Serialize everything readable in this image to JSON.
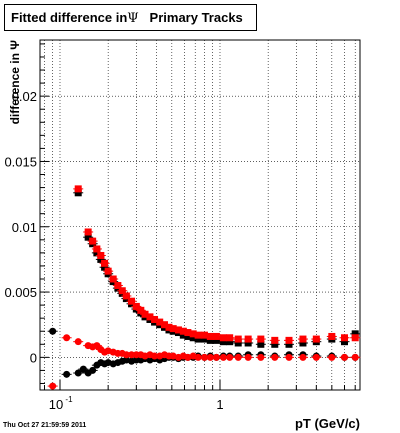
{
  "title_prefix": "Fitted difference in",
  "title_symbol": "Ψ",
  "title_suffix": "Primary Tracks",
  "footer_timestamp": "Thu Oct 27 21:59:59 2011",
  "chart_data": {
    "type": "scatter",
    "title": "Fitted difference in Ψ Primary Tracks",
    "xlabel": "pT (GeV/c)",
    "ylabel": "difference in Ψ",
    "xscale": "log",
    "xlim": [
      0.075,
      7.5
    ],
    "ylim": [
      -0.0025,
      0.0243
    ],
    "grid": true,
    "x_ticks": [
      {
        "value": 0.1,
        "label": "10",
        "exp": "-1"
      },
      {
        "value": 1,
        "label": "1"
      }
    ],
    "y_ticks": [
      {
        "value": 0,
        "label": "0"
      },
      {
        "value": 0.005,
        "label": "0.005"
      },
      {
        "value": 0.01,
        "label": "0.01"
      },
      {
        "value": 0.015,
        "label": "0.015"
      },
      {
        "value": 0.02,
        "label": "0.02"
      }
    ],
    "series": [
      {
        "color": "#000000",
        "marker": "square",
        "x": [
          0.13,
          0.15,
          0.16,
          0.17,
          0.18,
          0.19,
          0.2,
          0.215,
          0.23,
          0.245,
          0.26,
          0.28,
          0.3,
          0.32,
          0.34,
          0.365,
          0.39,
          0.42,
          0.45,
          0.48,
          0.51,
          0.55,
          0.59,
          0.63,
          0.68,
          0.73,
          0.8,
          0.87,
          0.95,
          1.05,
          1.15,
          1.3,
          1.5,
          1.8,
          2.2,
          2.7,
          3.3,
          4.0,
          5.0,
          6.0,
          7.0
        ],
        "y": [
          0.0126,
          0.0092,
          0.0087,
          0.008,
          0.0075,
          0.0069,
          0.0064,
          0.0058,
          0.0053,
          0.0049,
          0.0045,
          0.0041,
          0.0037,
          0.0034,
          0.0031,
          0.0029,
          0.0027,
          0.0025,
          0.0023,
          0.0021,
          0.002,
          0.0019,
          0.0017,
          0.0016,
          0.0015,
          0.0014,
          0.0014,
          0.0013,
          0.0013,
          0.0012,
          0.0012,
          0.0011,
          0.0011,
          0.001,
          0.001,
          0.001,
          0.0011,
          0.0012,
          0.0014,
          0.0012,
          0.0018
        ]
      },
      {
        "color": "#ff0000",
        "marker": "square",
        "x": [
          0.13,
          0.15,
          0.16,
          0.17,
          0.18,
          0.19,
          0.2,
          0.215,
          0.23,
          0.245,
          0.26,
          0.28,
          0.3,
          0.32,
          0.34,
          0.365,
          0.39,
          0.42,
          0.45,
          0.48,
          0.51,
          0.55,
          0.59,
          0.63,
          0.68,
          0.73,
          0.8,
          0.87,
          0.95,
          1.05,
          1.15,
          1.3,
          1.5,
          1.8,
          2.2,
          2.7,
          3.3,
          4.0,
          5.0,
          6.0,
          7.0
        ],
        "y": [
          0.0129,
          0.0096,
          0.0089,
          0.0083,
          0.0078,
          0.0072,
          0.0066,
          0.006,
          0.0055,
          0.0051,
          0.0047,
          0.0043,
          0.0039,
          0.0036,
          0.0033,
          0.0031,
          0.0029,
          0.0027,
          0.0025,
          0.0023,
          0.0022,
          0.0021,
          0.002,
          0.0019,
          0.0018,
          0.0017,
          0.0017,
          0.0016,
          0.0016,
          0.0015,
          0.0015,
          0.0014,
          0.0014,
          0.0014,
          0.0013,
          0.0013,
          0.0014,
          0.0014,
          0.0016,
          0.0015,
          0.0015
        ]
      },
      {
        "color": "#000000",
        "marker": "circle",
        "x": [
          0.09,
          0.11,
          0.13,
          0.14,
          0.15,
          0.16,
          0.17,
          0.18,
          0.19,
          0.2,
          0.215,
          0.23,
          0.245,
          0.26,
          0.28,
          0.3,
          0.32,
          0.34,
          0.365,
          0.39,
          0.42,
          0.45,
          0.48,
          0.51,
          0.55,
          0.59,
          0.63,
          0.68,
          0.73,
          0.8,
          0.87,
          0.95,
          1.05,
          1.15,
          1.3,
          1.5,
          1.8,
          2.2,
          2.7,
          3.3,
          4.0,
          5.0,
          6.0,
          7.0
        ],
        "y": [
          0.002,
          -0.0013,
          -0.0012,
          -0.0009,
          -0.0012,
          -0.001,
          -0.0006,
          -0.0004,
          -0.0005,
          -0.0004,
          -0.0005,
          -0.0004,
          -0.0003,
          -0.0002,
          -0.0003,
          -0.0002,
          -0.0002,
          -0.0001,
          -0.0002,
          -0.0001,
          -0.0002,
          -0.0001,
          0.0,
          0.0,
          -0.0001,
          0.0,
          0.0,
          0.0,
          0.0001,
          0.0,
          0.0001,
          0.0,
          0.0001,
          0.0001,
          0.0001,
          0.0002,
          0.0002,
          0.0001,
          0.0002,
          0.0002,
          0.0001,
          0.0001,
          0.0,
          0.0
        ]
      },
      {
        "color": "#ff0000",
        "marker": "circle",
        "x": [
          0.09,
          0.11,
          0.13,
          0.15,
          0.16,
          0.17,
          0.18,
          0.19,
          0.2,
          0.215,
          0.23,
          0.245,
          0.26,
          0.28,
          0.3,
          0.32,
          0.34,
          0.365,
          0.39,
          0.42,
          0.45,
          0.48,
          0.51,
          0.55,
          0.59,
          0.63,
          0.68,
          0.73,
          0.8,
          0.87,
          0.95,
          1.05,
          1.15,
          1.3,
          1.5,
          1.8,
          2.2,
          2.7,
          3.3,
          4.0,
          5.0,
          6.0,
          7.0
        ],
        "y": [
          -0.0022,
          0.0015,
          0.0012,
          0.0009,
          0.0008,
          0.0009,
          0.0006,
          0.0004,
          0.0005,
          0.0004,
          0.0003,
          0.0003,
          0.0002,
          0.0002,
          0.0002,
          0.0002,
          0.0001,
          0.0002,
          0.0001,
          0.0001,
          0.0002,
          0.0001,
          0.0001,
          0.0,
          0.0001,
          0.0,
          0.0001,
          0.0,
          0.0,
          0.0,
          0.0,
          0.0,
          0.0,
          0.0,
          0.0,
          0.0,
          0.0,
          0.0,
          0.0,
          0.0,
          0.0,
          0.0,
          0.0
        ]
      }
    ]
  }
}
